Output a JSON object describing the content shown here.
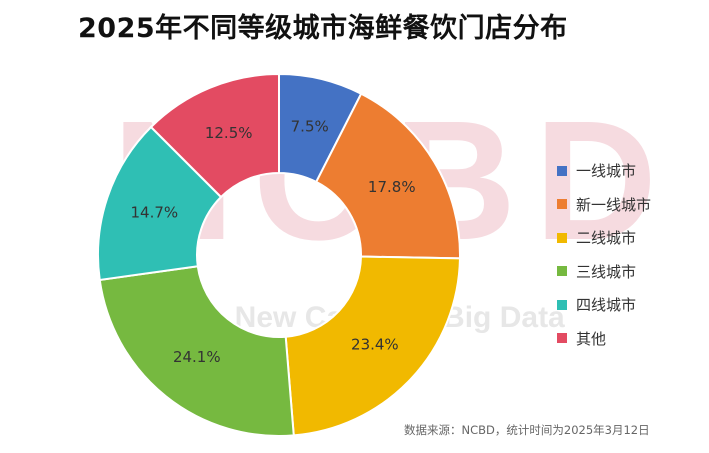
{
  "title": "2025年不同等级城市海鲜餐饮门店分布",
  "watermark": {
    "logo_text": "NCBD",
    "sub_text": "NCBD 餐宝典 · New Category Big Data"
  },
  "source": "数据来源：NCBD，统计时间为2025年3月12日",
  "chart_data": {
    "type": "pie",
    "donut": true,
    "unit": "%",
    "categories": [
      "一线城市",
      "新一线城市",
      "二线城市",
      "三线城市",
      "四线城市",
      "其他"
    ],
    "values": [
      7.5,
      17.8,
      23.4,
      24.1,
      14.7,
      12.5
    ],
    "labels": [
      "7.5%",
      "17.8%",
      "23.4%",
      "24.1%",
      "14.7%",
      "12.5%"
    ],
    "colors": [
      "#4472c4",
      "#ed7d31",
      "#f1b900",
      "#76b940",
      "#2fbfb4",
      "#e34b62"
    ],
    "start_angle": "12 o'clock, clockwise",
    "legend_position": "right"
  }
}
